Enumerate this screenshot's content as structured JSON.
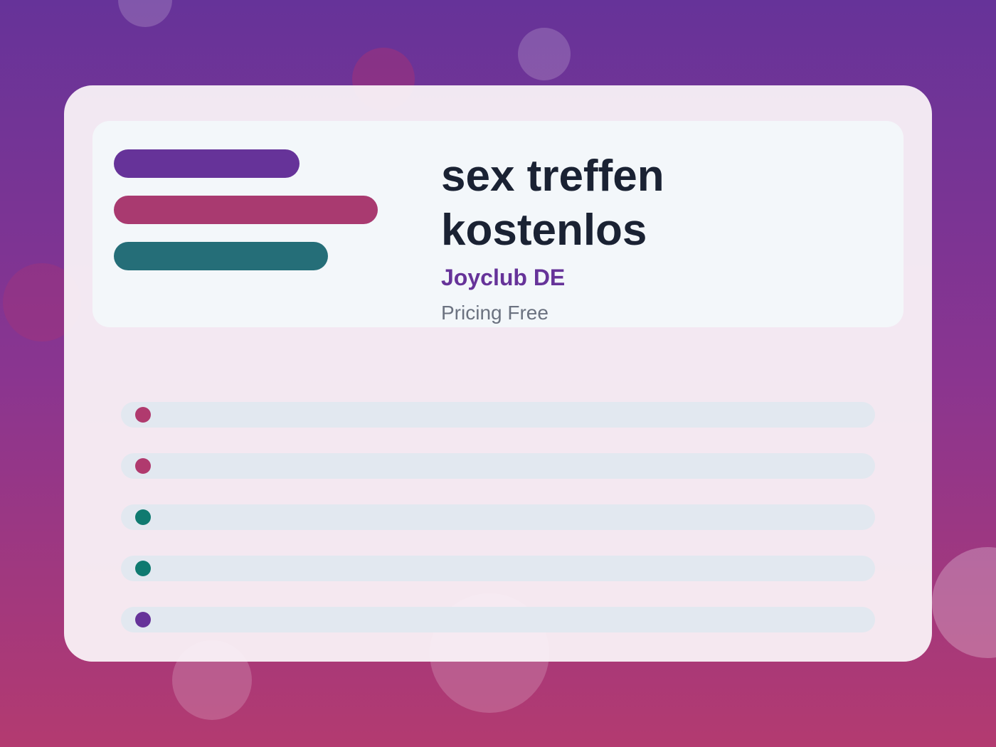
{
  "card": {
    "title": "sex treffen kostenlos",
    "brand": "Joyclub DE",
    "pricing": "Pricing Free"
  }
}
